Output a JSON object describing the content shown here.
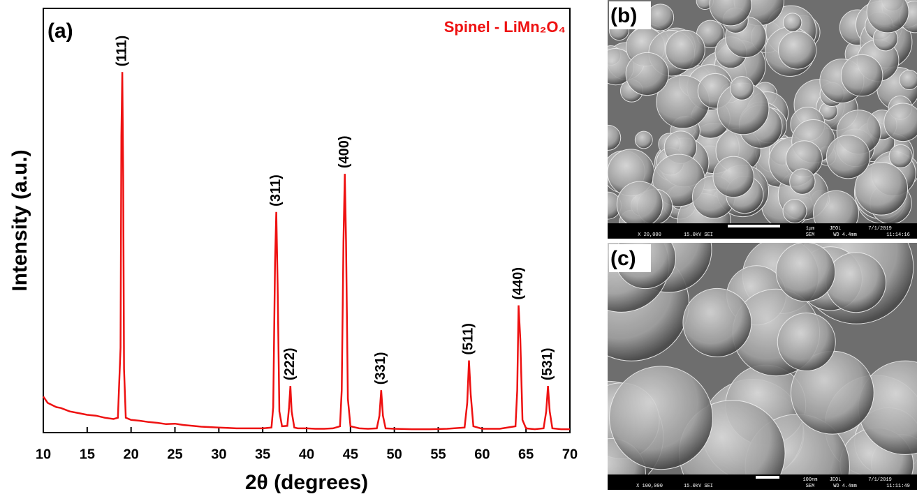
{
  "chart_data": {
    "type": "line",
    "panel_label": "(a)",
    "title": "Spinel - LiMn₂O₄",
    "x_label": "2θ (degrees)",
    "y_label": "Intensity (a.u.)",
    "color": "#ee1111",
    "xlim": [
      10,
      70
    ],
    "xticks": [
      10,
      15,
      20,
      25,
      30,
      35,
      40,
      45,
      50,
      55,
      60,
      65,
      70
    ],
    "ylim": [
      0,
      100
    ],
    "x": [
      10,
      10.5,
      11,
      11.5,
      12,
      13,
      14,
      15,
      16,
      17,
      18,
      18.5,
      18.8,
      18.9,
      19.0,
      19.1,
      19.2,
      19.4,
      20,
      21,
      22,
      23,
      24,
      25,
      26,
      27,
      28,
      29,
      30,
      31,
      32,
      33,
      34,
      35,
      36,
      36.2,
      36.4,
      36.55,
      36.7,
      36.9,
      37.2,
      37.8,
      38.0,
      38.15,
      38.3,
      38.6,
      39,
      40,
      41,
      42,
      43,
      43.8,
      44.0,
      44.2,
      44.35,
      44.5,
      44.7,
      45,
      46,
      47,
      48,
      48.3,
      48.5,
      48.7,
      49,
      50,
      52,
      54,
      56,
      58,
      58.3,
      58.5,
      58.7,
      59,
      60,
      62,
      63.8,
      64,
      64.15,
      64.35,
      64.6,
      65,
      66,
      67,
      67.3,
      67.5,
      67.7,
      68,
      69,
      70
    ],
    "values": [
      8.5,
      7,
      6.5,
      6,
      5.8,
      5,
      4.6,
      4.2,
      4,
      3.5,
      3.2,
      3.5,
      20,
      70,
      85,
      60,
      15,
      3.5,
      3,
      2.8,
      2.5,
      2.3,
      2.0,
      2.1,
      1.8,
      1.6,
      1.4,
      1.3,
      1.2,
      1.1,
      1.0,
      1.0,
      1.0,
      1.0,
      1.2,
      6,
      40,
      52,
      35,
      5,
      1.5,
      1.6,
      6,
      11,
      5,
      1.2,
      1.0,
      1.0,
      0.9,
      0.9,
      1.0,
      1.5,
      10,
      45,
      61,
      45,
      8,
      1.5,
      1.0,
      0.9,
      1.0,
      4,
      10,
      4,
      1.0,
      0.9,
      0.8,
      0.8,
      0.9,
      1.2,
      7,
      17,
      9,
      1.5,
      0.9,
      0.9,
      1.5,
      10,
      30,
      22,
      3,
      1.0,
      0.8,
      1.0,
      5,
      11,
      5,
      1.0,
      0.8,
      0.8
    ],
    "annotations": [
      {
        "text": "(111)",
        "x": 19.0
      },
      {
        "text": "(311)",
        "x": 36.55
      },
      {
        "text": "(222)",
        "x": 38.15
      },
      {
        "text": "(400)",
        "x": 44.35
      },
      {
        "text": "(331)",
        "x": 48.5
      },
      {
        "text": "(511)",
        "x": 58.5
      },
      {
        "text": "(440)",
        "x": 64.15
      },
      {
        "text": "(531)",
        "x": 67.5
      }
    ]
  },
  "sem_images": [
    {
      "label": "(b)",
      "info": [
        "X 20,000",
        "15.0kV SEI",
        "1μm",
        "JEOL",
        "7/1/2019",
        "SEM",
        "WD 4.4mm",
        "11:14:16"
      ]
    },
    {
      "label": "(c)",
      "info": [
        "X 100,000",
        "15.0kV SEI",
        "100nm",
        "JEOL",
        "7/1/2019",
        "SEM",
        "WD 4.4mm",
        "11:11:49"
      ]
    }
  ]
}
